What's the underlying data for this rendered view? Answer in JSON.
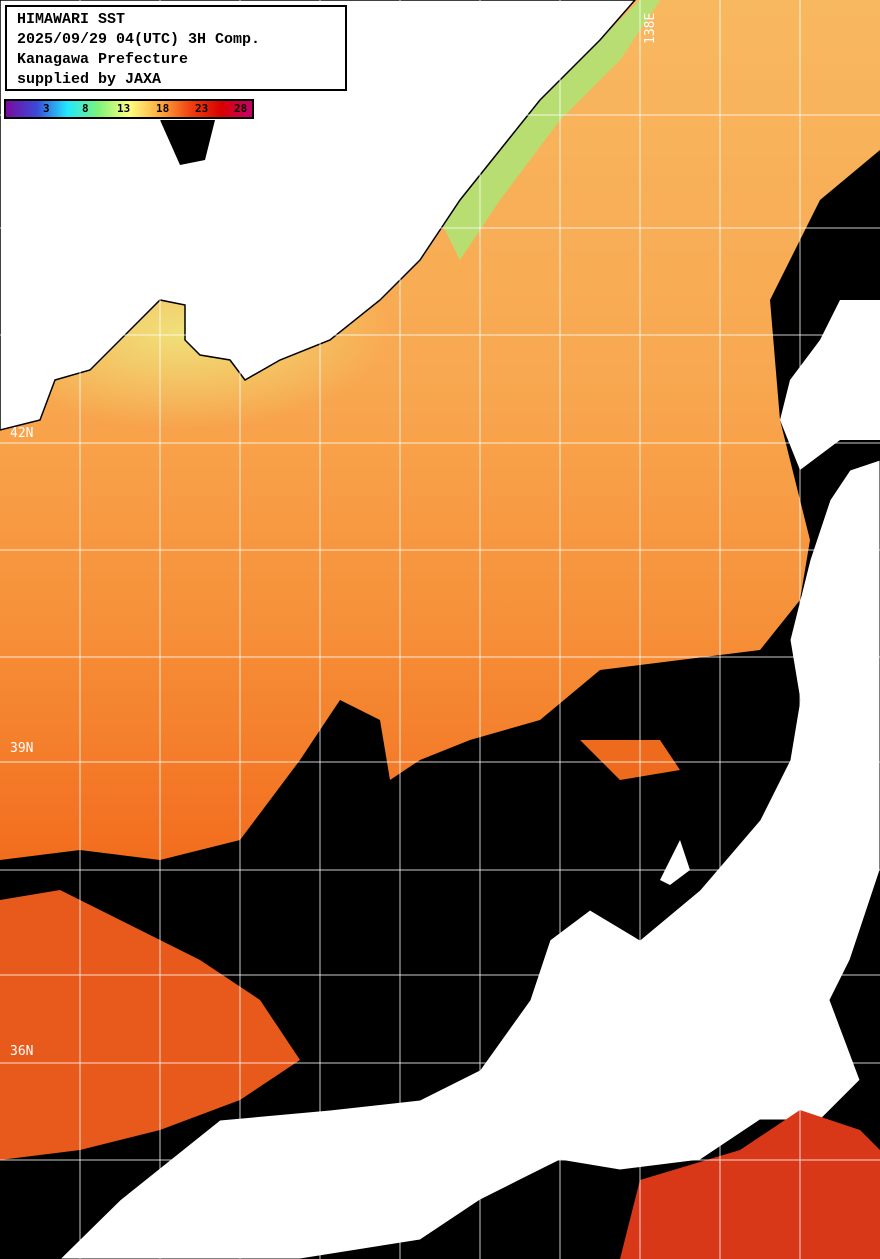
{
  "title": {
    "lines": [
      "HIMAWARI SST",
      "2025/09/29 04(UTC) 3H Comp.",
      "Kanagawa Prefecture",
      "supplied by JAXA"
    ]
  },
  "legend": {
    "ticks": [
      "3",
      "8",
      "13",
      "18",
      "23",
      "28"
    ],
    "colors": [
      "#7a0aa0",
      "#3a4ad8",
      "#22e8ff",
      "#7ef27a",
      "#ffff80",
      "#ffaa40",
      "#f04010",
      "#d80000",
      "#c8006a"
    ]
  },
  "map": {
    "lat_labels": [
      "42N",
      "39N",
      "36N"
    ],
    "lon_labels": [
      "138E"
    ],
    "colors": {
      "land": "#ffffff",
      "cloud": "#000000",
      "sea_warm": "#f0701c",
      "sea_mid": "#f8a040",
      "sea_cool": "#e8e878",
      "grid": "#ffffff"
    }
  }
}
